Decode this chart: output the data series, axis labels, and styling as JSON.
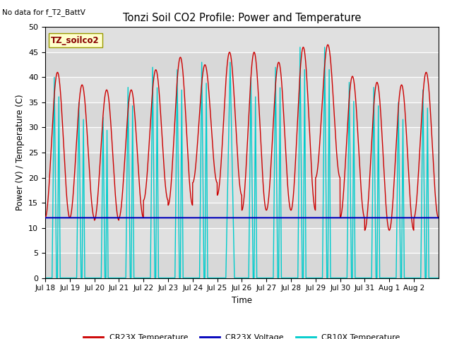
{
  "title": "Tonzi Soil CO2 Profile: Power and Temperature",
  "no_data_text": "No data for f_T2_BattV",
  "legend_box_text": "TZ_soilco2",
  "ylabel": "Power (V) / Temperature (C)",
  "xlabel": "Time",
  "ylim": [
    0,
    50
  ],
  "bg_color": "#e0e0e0",
  "fig_bg_color": "#ffffff",
  "grid_color": "#ffffff",
  "cr23x_temp_color": "#cc0000",
  "cr23x_volt_color": "#0000bb",
  "cr10x_temp_color": "#00cccc",
  "voltage_value": 12.0,
  "x_tick_labels": [
    "Jul 18",
    "Jul 19",
    "Jul 20",
    "Jul 21",
    "Jul 22",
    "Jul 23",
    "Jul 24",
    "Jul 25",
    "Jul 26",
    "Jul 27",
    "Jul 28",
    "Jul 29",
    "Jul 30",
    "Jul 31",
    "Aug 1",
    "Aug 2"
  ],
  "num_days": 16,
  "day_peaks_cr23x": [
    41.0,
    38.5,
    37.5,
    37.5,
    41.5,
    44.0,
    42.5,
    45.0,
    45.0,
    43.0,
    46.0,
    46.5,
    40.2,
    39.0,
    38.5,
    41.0
  ],
  "day_mins_cr23x": [
    12.0,
    12.0,
    11.5,
    12.0,
    15.5,
    14.5,
    19.0,
    16.5,
    13.5,
    13.5,
    13.5,
    20.0,
    12.0,
    9.5,
    9.5,
    12.0
  ],
  "day_peaks_cr10x": [
    40.0,
    35.0,
    32.0,
    38.0,
    42.0,
    41.5,
    43.0,
    43.0,
    40.0,
    42.0,
    46.0,
    46.0,
    39.0,
    38.0,
    35.0,
    37.5
  ],
  "cr10x_spike_widths": [
    0.18,
    0.18,
    0.15,
    0.18,
    0.18,
    0.18,
    0.18,
    0.35,
    0.18,
    0.18,
    0.18,
    0.18,
    0.18,
    0.18,
    0.18,
    0.18
  ],
  "cr10x_spike_offsets": [
    0.28,
    0.28,
    0.28,
    0.28,
    0.28,
    0.28,
    0.28,
    0.35,
    0.28,
    0.28,
    0.28,
    0.28,
    0.28,
    0.28,
    0.28,
    0.28
  ],
  "legend_labels": [
    "CR23X Temperature",
    "CR23X Voltage",
    "CR10X Temperature"
  ]
}
